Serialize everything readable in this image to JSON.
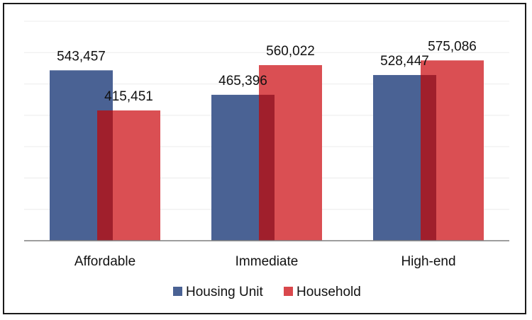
{
  "chart_data": {
    "type": "bar",
    "categories": [
      "Affordable",
      "Immediate",
      "High-end"
    ],
    "series": [
      {
        "name": "Housing Unit",
        "values": [
          543457,
          465396,
          528447
        ],
        "labels": [
          "543,457",
          "465,396",
          "528,447"
        ],
        "color": "#4A6294"
      },
      {
        "name": "Household",
        "values": [
          415451,
          560022,
          575086
        ],
        "labels": [
          "415,451",
          "560,022",
          "575,086"
        ],
        "color": "#D9484C"
      }
    ],
    "overlap_color": "#A01F2C",
    "ylim": [
      0,
      700000
    ],
    "grid": true,
    "legend": "bottom",
    "data_labels": true
  }
}
